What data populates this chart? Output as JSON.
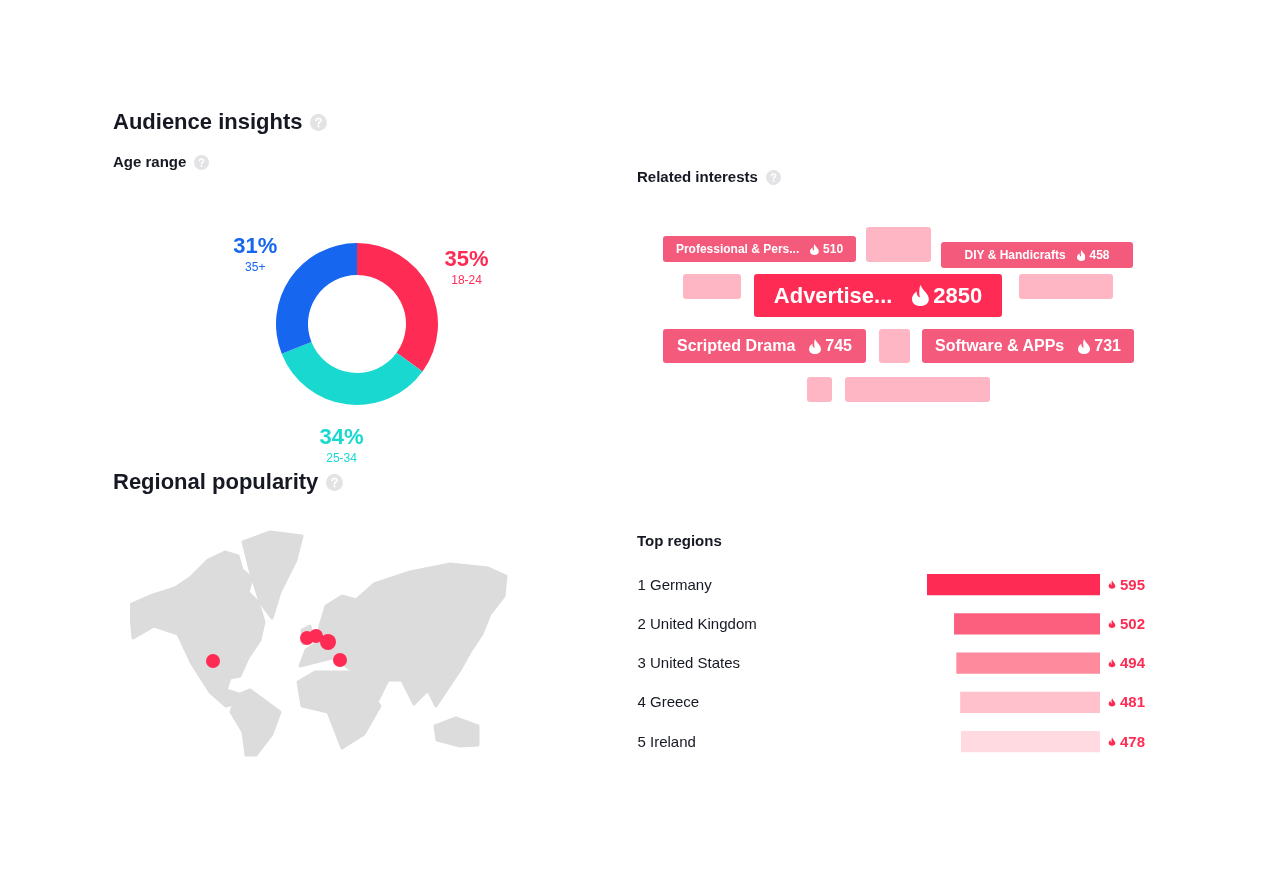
{
  "chart_data": [
    {
      "type": "donut",
      "title": "Audience insights",
      "subtitle": "Age range",
      "categories": [
        "18-24",
        "25-34",
        "35+"
      ],
      "values": [
        35,
        34,
        31
      ],
      "colors": [
        "#fe2c55",
        "#18d8cf",
        "#1766ef"
      ],
      "value_labels": [
        "35%",
        "34%",
        "31%"
      ]
    },
    {
      "type": "other",
      "title": "Related interests",
      "categories": [
        "Professional & Pers...",
        "DIY & Handicrafts",
        "Advertise...",
        "Scripted Drama",
        "Software & APPs"
      ],
      "values": [
        510,
        458,
        2850,
        745,
        731
      ],
      "colors": [
        "#f35a7b",
        "#f35a7b",
        "#fe2c55",
        "#f35a7b",
        "#f35a7b"
      ],
      "data_labels": true
    },
    {
      "type": "other",
      "title": "Regional popularity"
    },
    {
      "type": "bar",
      "orientation": "horizontal",
      "title": "Top regions",
      "categories": [
        "1 Germany",
        "2 United Kingdom",
        "3 United States",
        "4 Greece",
        "5 Ireland"
      ],
      "values": [
        595,
        502,
        494,
        481,
        478
      ],
      "colors": [
        "#fe2c55",
        "#fc5f7d",
        "#fe8a9d",
        "#ffc2cc",
        "#ffdbe1"
      ],
      "data_labels": true,
      "tick_labels": "y"
    }
  ]
}
